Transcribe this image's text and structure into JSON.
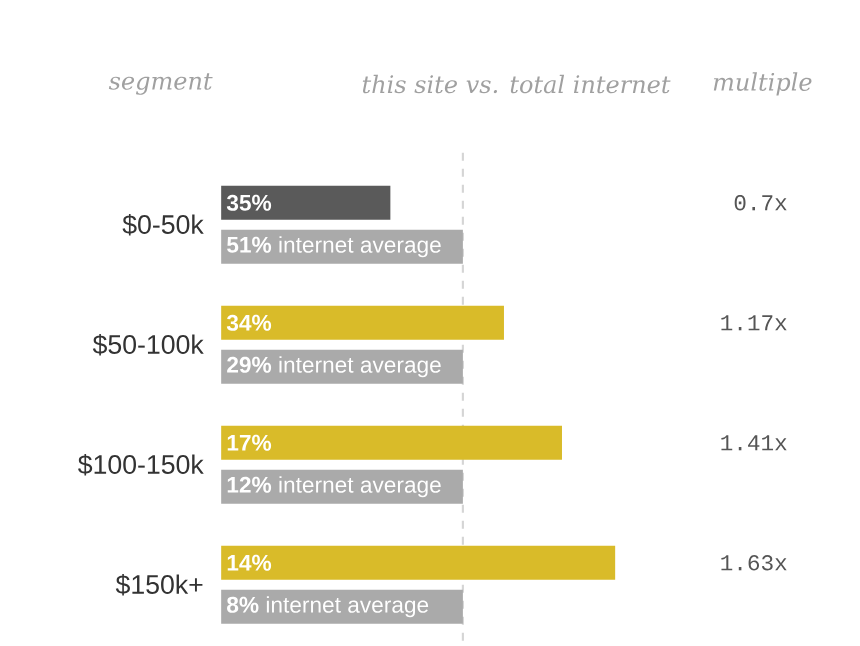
{
  "chart_data": {
    "type": "bar",
    "orientation": "horizontal",
    "categories": [
      "$0-50k",
      "$50-100k",
      "$100-150k",
      "$150k+"
    ],
    "series": [
      {
        "colors": [
          "#5a5a5a",
          "#d9bb29",
          "#d9bb29",
          "#d9bb29"
        ],
        "values": [
          0.7,
          1.17,
          1.41,
          1.63
        ],
        "value_labels": [
          "0.7x",
          "1.17x",
          "1.41x",
          "1.63x"
        ]
      },
      {
        "color": "#aaaaaa",
        "values": [
          1,
          1,
          1,
          1
        ]
      }
    ],
    "xlim": [
      0,
      1.63
    ],
    "tick_labels": "y",
    "ref_lines": [
      {
        "axis": "x",
        "value": 1,
        "line_style": "dashed",
        "color": "#d5d5d5"
      }
    ],
    "annotations": [
      "segment",
      "this site vs. total internet",
      "multiple",
      "**35%**",
      "**51%** internet average",
      "**34%**",
      "**29%** internet average",
      "**17%**",
      "**12%** internet average",
      "**14%**",
      "**8%** internet average"
    ]
  }
}
